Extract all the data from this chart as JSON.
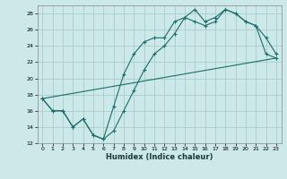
{
  "xlabel": "Humidex (Indice chaleur)",
  "background_color": "#cce8e8",
  "grid_color": "#aacccc",
  "line_color": "#1a6e6a",
  "xlim": [
    -0.5,
    23.5
  ],
  "ylim": [
    12,
    29
  ],
  "xticks": [
    0,
    1,
    2,
    3,
    4,
    5,
    6,
    7,
    8,
    9,
    10,
    11,
    12,
    13,
    14,
    15,
    16,
    17,
    18,
    19,
    20,
    21,
    22,
    23
  ],
  "yticks": [
    12,
    14,
    16,
    18,
    20,
    22,
    24,
    26,
    28
  ],
  "line1_x": [
    0,
    1,
    2,
    3,
    4,
    5,
    6,
    7,
    8,
    9,
    10,
    11,
    12,
    13,
    14,
    15,
    16,
    17,
    18,
    19,
    20,
    21,
    22,
    23
  ],
  "line1_y": [
    17.5,
    16.0,
    16.0,
    14.0,
    15.0,
    13.0,
    12.5,
    13.5,
    16.0,
    18.5,
    21.0,
    23.0,
    24.0,
    25.5,
    27.5,
    28.5,
    27.0,
    27.5,
    28.5,
    28.0,
    27.0,
    26.5,
    25.0,
    23.0
  ],
  "line2_x": [
    0,
    1,
    2,
    3,
    4,
    5,
    6,
    7,
    8,
    9,
    10,
    11,
    12,
    13,
    14,
    15,
    16,
    17,
    18,
    19,
    20,
    21,
    22,
    23
  ],
  "line2_y": [
    17.5,
    16.0,
    16.0,
    14.0,
    15.0,
    13.0,
    12.5,
    16.5,
    20.5,
    23.0,
    24.5,
    25.0,
    25.0,
    27.0,
    27.5,
    27.0,
    26.5,
    27.0,
    28.5,
    28.0,
    27.0,
    26.5,
    23.0,
    22.5
  ],
  "line3_x": [
    0,
    23
  ],
  "line3_y": [
    17.5,
    22.5
  ]
}
